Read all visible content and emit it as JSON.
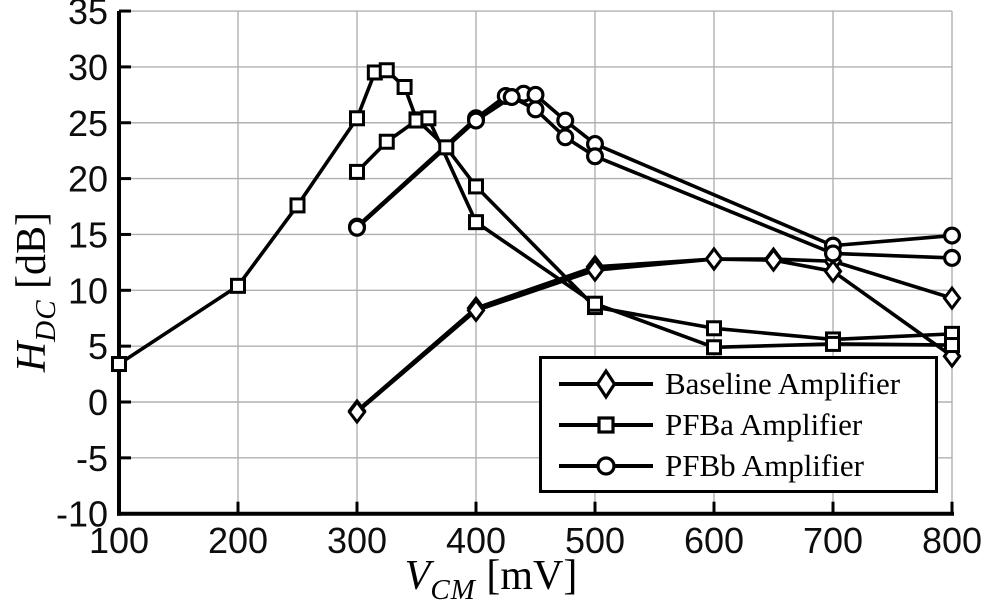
{
  "figure": {
    "background": "#ffffff",
    "line_color": "#000000",
    "grid_color": "#b0b0b0",
    "tick_label_color": "#0d0d0d"
  },
  "axes": {
    "xlabel": {
      "variable": "V",
      "subscript": "CM",
      "unit": " [mV]"
    },
    "ylabel": {
      "variable": "H",
      "subscript": "DC",
      "unit": " [dB]"
    },
    "xticks": [
      100,
      200,
      300,
      400,
      500,
      600,
      700,
      800
    ],
    "yticks": [
      -10,
      -5,
      0,
      5,
      10,
      15,
      20,
      25,
      30,
      35
    ]
  },
  "legend": {
    "items": [
      {
        "label": "Baseline Amplifier",
        "marker": "diamond"
      },
      {
        "label": "PFBa Amplifier",
        "marker": "square"
      },
      {
        "label": "PFBb Amplifier",
        "marker": "circle"
      }
    ]
  },
  "chart_data": {
    "type": "line",
    "title": "",
    "xlabel": "V_CM [mV]",
    "ylabel": "H_DC [dB]",
    "xlim": [
      100,
      800
    ],
    "ylim": [
      -10,
      35
    ],
    "grid": true,
    "legend_position": "lower right inside",
    "series": [
      {
        "name": "Baseline Amplifier",
        "marker": "diamond",
        "trace": 1,
        "points": [
          [
            300,
            -0.8
          ],
          [
            400,
            8.4
          ],
          [
            500,
            12.1
          ],
          [
            600,
            12.8
          ],
          [
            650,
            12.8
          ],
          [
            700,
            12.6
          ],
          [
            800,
            9.3
          ]
        ]
      },
      {
        "name": "Baseline Amplifier",
        "marker": "diamond",
        "trace": 2,
        "points": [
          [
            300,
            -0.9
          ],
          [
            400,
            8.2
          ],
          [
            500,
            11.8
          ],
          [
            600,
            12.8
          ],
          [
            650,
            12.7
          ],
          [
            700,
            11.7
          ],
          [
            800,
            4.1
          ]
        ]
      },
      {
        "name": "PFBa Amplifier",
        "marker": "square",
        "trace": 1,
        "points": [
          [
            100,
            3.4
          ],
          [
            200,
            10.4
          ],
          [
            250,
            17.6
          ],
          [
            300,
            25.4
          ],
          [
            315,
            29.5
          ],
          [
            325,
            29.7
          ],
          [
            340,
            28.2
          ],
          [
            350,
            25.3
          ],
          [
            375,
            22.8
          ],
          [
            400,
            19.3
          ],
          [
            500,
            8.5
          ],
          [
            600,
            6.6
          ],
          [
            700,
            5.6
          ],
          [
            800,
            6.1
          ]
        ]
      },
      {
        "name": "PFBa Amplifier",
        "marker": "square",
        "trace": 2,
        "points": [
          [
            300,
            20.6
          ],
          [
            325,
            23.3
          ],
          [
            350,
            25.2
          ],
          [
            360,
            25.4
          ],
          [
            400,
            16.1
          ],
          [
            500,
            8.8
          ],
          [
            600,
            4.9
          ],
          [
            700,
            5.2
          ],
          [
            800,
            5.1
          ]
        ]
      },
      {
        "name": "PFBb Amplifier",
        "marker": "circle",
        "trace": 1,
        "points": [
          [
            300,
            15.7
          ],
          [
            400,
            25.4
          ],
          [
            425,
            27.4
          ],
          [
            440,
            27.6
          ],
          [
            450,
            27.5
          ],
          [
            475,
            25.2
          ],
          [
            500,
            23.1
          ],
          [
            700,
            14.0
          ],
          [
            800,
            14.9
          ]
        ]
      },
      {
        "name": "PFBb Amplifier",
        "marker": "circle",
        "trace": 2,
        "points": [
          [
            300,
            15.6
          ],
          [
            400,
            25.2
          ],
          [
            430,
            27.3
          ],
          [
            450,
            26.2
          ],
          [
            475,
            23.7
          ],
          [
            500,
            22.0
          ],
          [
            700,
            13.3
          ],
          [
            800,
            12.9
          ]
        ]
      }
    ]
  }
}
